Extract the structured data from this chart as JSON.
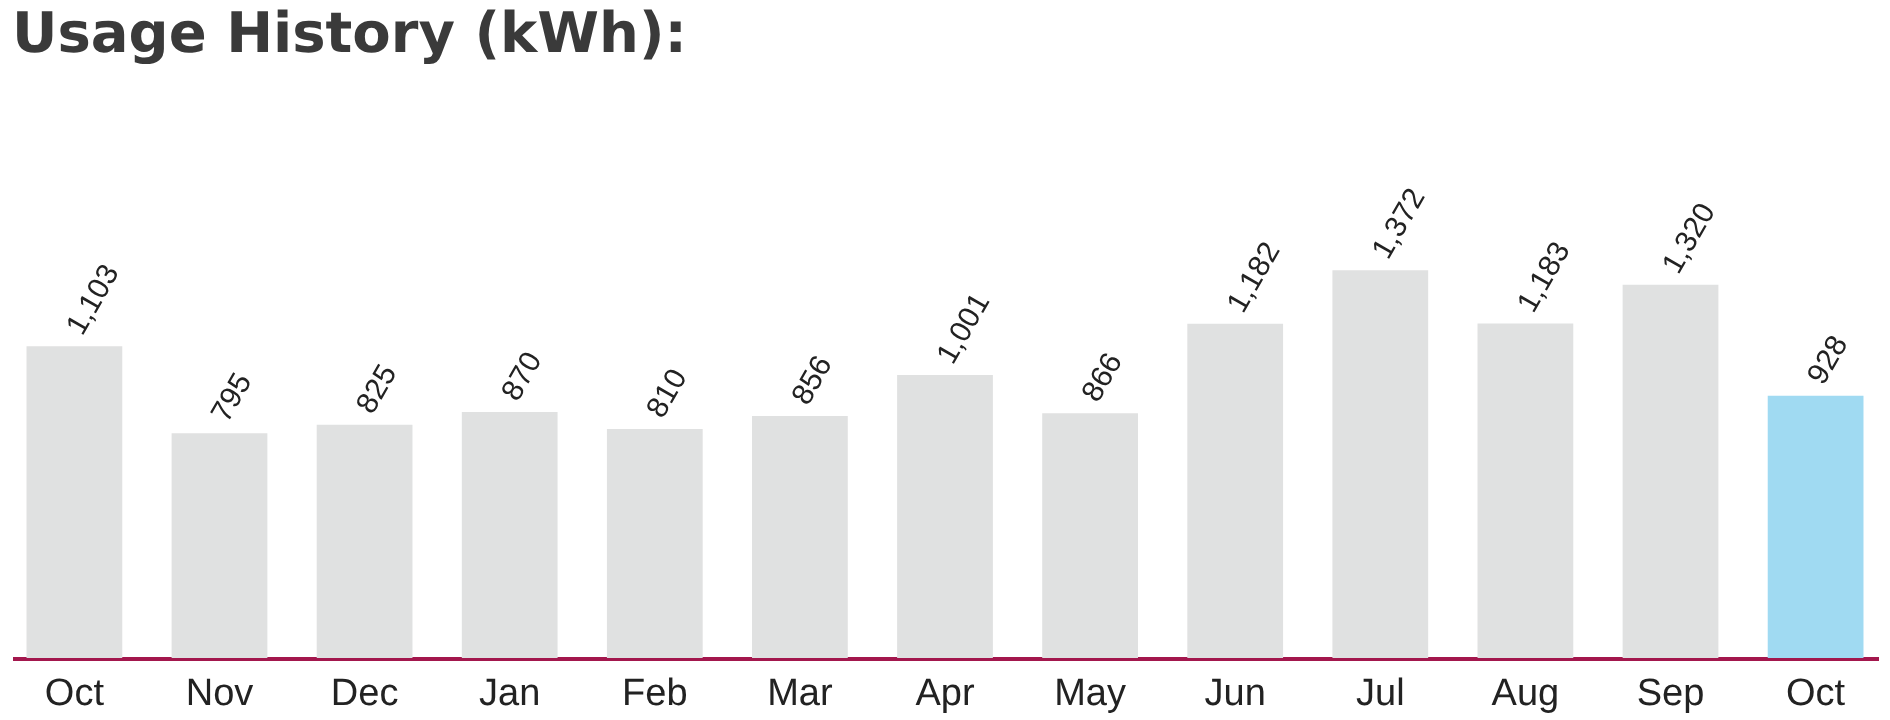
{
  "chart_data": {
    "type": "bar",
    "title": "Usage History (kWh):",
    "categories": [
      "Oct",
      "Nov",
      "Dec",
      "Jan",
      "Feb",
      "Mar",
      "Apr",
      "May",
      "Jun",
      "Jul",
      "Aug",
      "Sep",
      "Oct"
    ],
    "values": [
      1103,
      795,
      825,
      870,
      810,
      856,
      1001,
      866,
      1182,
      1372,
      1183,
      1320,
      928
    ],
    "value_labels": [
      "1,103",
      "795",
      "825",
      "870",
      "810",
      "856",
      "1,001",
      "866",
      "1,182",
      "1,372",
      "1,183",
      "1,320",
      "928"
    ],
    "colors": [
      "#e0e1e1",
      "#e0e1e1",
      "#e0e1e1",
      "#e0e1e1",
      "#e0e1e1",
      "#e0e1e1",
      "#e0e1e1",
      "#e0e1e1",
      "#e0e1e1",
      "#e0e1e1",
      "#e0e1e1",
      "#e0e1e1",
      "#a0daf2"
    ]
  }
}
